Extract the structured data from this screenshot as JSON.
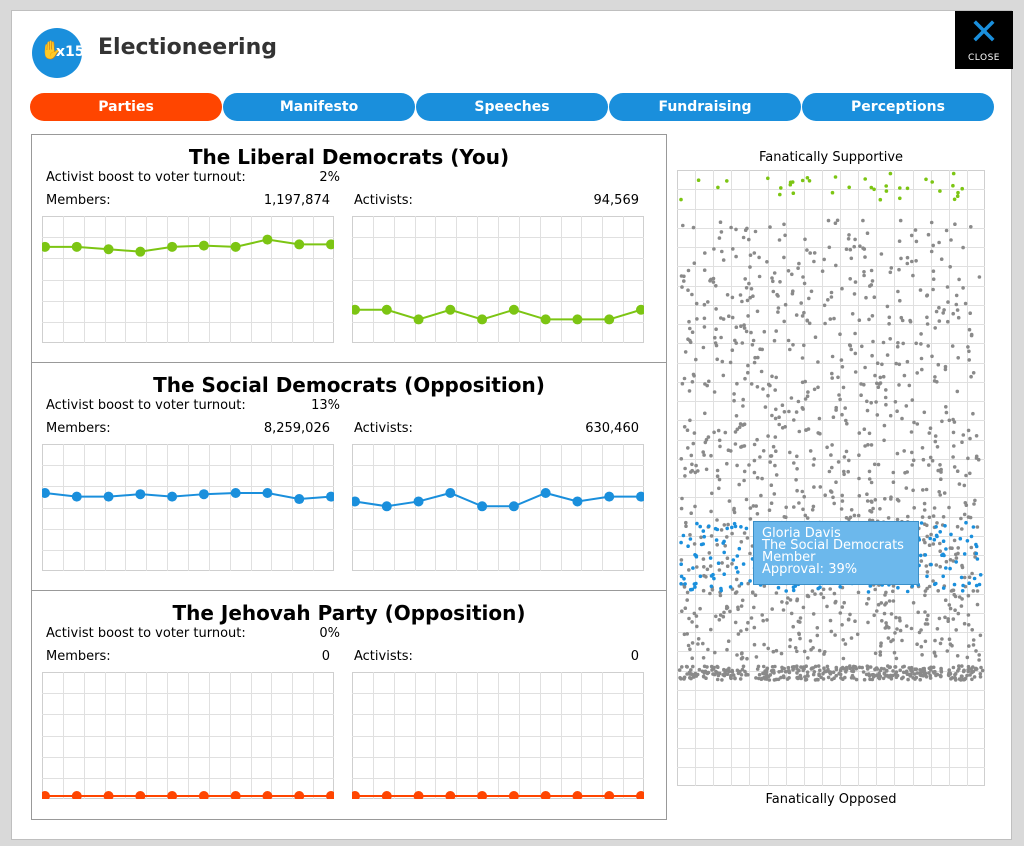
{
  "app": {
    "title": "Electioneering",
    "logo_count": "x15",
    "close_label": "CLOSE",
    "icons": {
      "logo": "raised-hand-icon",
      "close": "close-x-icon"
    }
  },
  "tabs": [
    {
      "label": "Parties",
      "active": true
    },
    {
      "label": "Manifesto",
      "active": false
    },
    {
      "label": "Speeches",
      "active": false
    },
    {
      "label": "Fundraising",
      "active": false
    },
    {
      "label": "Perceptions",
      "active": false
    }
  ],
  "labels": {
    "turnout": "Activist boost to voter turnout:",
    "members": "Members:",
    "activists": "Activists:"
  },
  "parties": [
    {
      "name": "The Liberal Democrats (You)",
      "turnout": "2%",
      "members": "1,197,874",
      "activists": "94,569",
      "color": "#7cc513",
      "members_trend": [
        0.77,
        0.77,
        0.75,
        0.73,
        0.77,
        0.78,
        0.77,
        0.83,
        0.79,
        0.79
      ],
      "activists_trend": [
        0.25,
        0.25,
        0.17,
        0.25,
        0.17,
        0.25,
        0.17,
        0.17,
        0.17,
        0.25
      ]
    },
    {
      "name": "The Social Democrats (Opposition)",
      "turnout": "13%",
      "members": "8,259,026",
      "activists": "630,460",
      "color": "#1a8fdc",
      "members_trend": [
        0.62,
        0.59,
        0.59,
        0.61,
        0.59,
        0.61,
        0.62,
        0.62,
        0.57,
        0.59
      ],
      "activists_trend": [
        0.55,
        0.51,
        0.55,
        0.62,
        0.51,
        0.51,
        0.62,
        0.55,
        0.59,
        0.59
      ]
    },
    {
      "name": "The Jehovah Party (Opposition)",
      "turnout": "0%",
      "members": "0",
      "activists": "0",
      "color": "#ff4500",
      "members_trend": [
        0,
        0,
        0,
        0,
        0,
        0,
        0,
        0,
        0,
        0
      ],
      "activists_trend": [
        0,
        0,
        0,
        0,
        0,
        0,
        0,
        0,
        0,
        0
      ]
    }
  ],
  "perceptions": {
    "top_label": "Fanatically Supportive",
    "bottom_label": "Fanatically Opposed",
    "colors": {
      "supporter": "#7cc513",
      "opposition": "#1a8fdc",
      "neutral": "#8a8a8a"
    }
  },
  "tooltip": {
    "name": "Gloria Davis",
    "party": "The Social Democrats",
    "role": "Member",
    "approval": "Approval: 39%"
  }
}
